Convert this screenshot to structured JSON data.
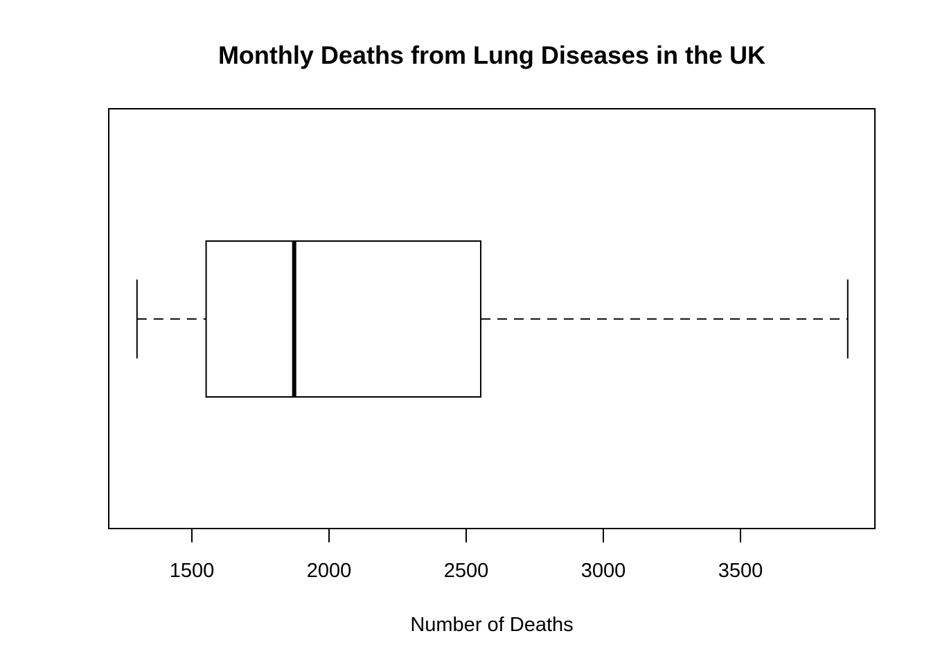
{
  "chart_data": {
    "type": "boxplot",
    "orientation": "horizontal",
    "title": "Monthly Deaths from Lung Diseases in the UK",
    "xlabel": "Number of Deaths",
    "ylabel": "",
    "xlim": [
      1197,
      3990
    ],
    "x_ticks": [
      1500,
      2000,
      2500,
      3000,
      3500
    ],
    "x_tick_labels": [
      "1500",
      "2000",
      "2500",
      "3000",
      "3500"
    ],
    "grid": false,
    "series": [
      {
        "min": 1300,
        "q1": 1552,
        "median": 1873,
        "q3": 2553,
        "max": 3891
      }
    ],
    "colors": {
      "box_fill": "#ffffff",
      "stroke": "#000000"
    }
  }
}
